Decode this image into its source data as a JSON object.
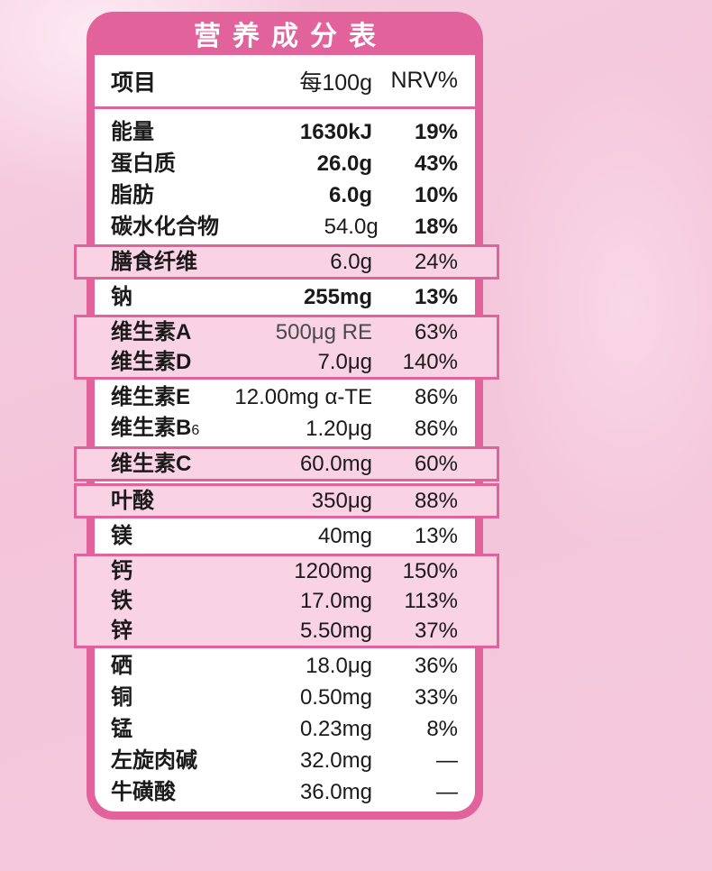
{
  "title": "营养成分表",
  "columns": {
    "item": "项目",
    "amount": "每100g",
    "nrv": "NRV%"
  },
  "colors": {
    "accent": "#e2639c",
    "highlight_fill": "#f9d2e3",
    "card_bg": "#ffffff",
    "page_bg": "#f5c9dd",
    "title_text": "#ffffff",
    "text": "#1a1a1a"
  },
  "rows": [
    {
      "name": "能量",
      "value": "1630kJ",
      "nrv": "19%",
      "bold": true
    },
    {
      "name": "蛋白质",
      "value": "26.0g",
      "nrv": "43%",
      "bold": true
    },
    {
      "name": "脂肪",
      "value": "6.0g",
      "nrv": "10%",
      "bold": true
    },
    {
      "name": "碳水化合物",
      "value": "54.0g",
      "nrv": "18%",
      "bold_nrv": true
    },
    {
      "name": "膳食纤维",
      "value": "6.0g",
      "nrv": "24%",
      "hl": "g1"
    },
    {
      "name": "钠",
      "value": "255mg",
      "nrv": "13%",
      "bold": true
    },
    {
      "name": "维生素A",
      "value": "500μg RE",
      "nrv": "63%",
      "hl": "g2",
      "muted_value": true
    },
    {
      "name": "维生素D",
      "value": "7.0μg",
      "nrv": "140%",
      "hl": "g2"
    },
    {
      "name": "维生素E",
      "value": "12.00mg α-TE",
      "nrv": "86%"
    },
    {
      "name": "维生素B",
      "sub": "6",
      "value": "1.20μg",
      "nrv": "86%"
    },
    {
      "name": "维生素C",
      "value": "60.0mg",
      "nrv": "60%",
      "hl": "g3"
    },
    {
      "name": "叶酸",
      "value": "350μg",
      "nrv": "88%",
      "hl": "g4"
    },
    {
      "name": "镁",
      "value": "40mg",
      "nrv": "13%"
    },
    {
      "name": "钙",
      "value": "1200mg",
      "nrv": "150%",
      "hl": "g5"
    },
    {
      "name": "铁",
      "value": "17.0mg",
      "nrv": "113%",
      "hl": "g5"
    },
    {
      "name": "锌",
      "value": "5.50mg",
      "nrv": "37%",
      "hl": "g5"
    },
    {
      "name": "硒",
      "value": "18.0μg",
      "nrv": "36%"
    },
    {
      "name": "铜",
      "value": "0.50mg",
      "nrv": "33%"
    },
    {
      "name": "锰",
      "value": "0.23mg",
      "nrv": "8%"
    },
    {
      "name": "左旋肉碱",
      "value": "32.0mg",
      "nrv": "—"
    },
    {
      "name": "牛磺酸",
      "value": "36.0mg",
      "nrv": "—"
    }
  ]
}
